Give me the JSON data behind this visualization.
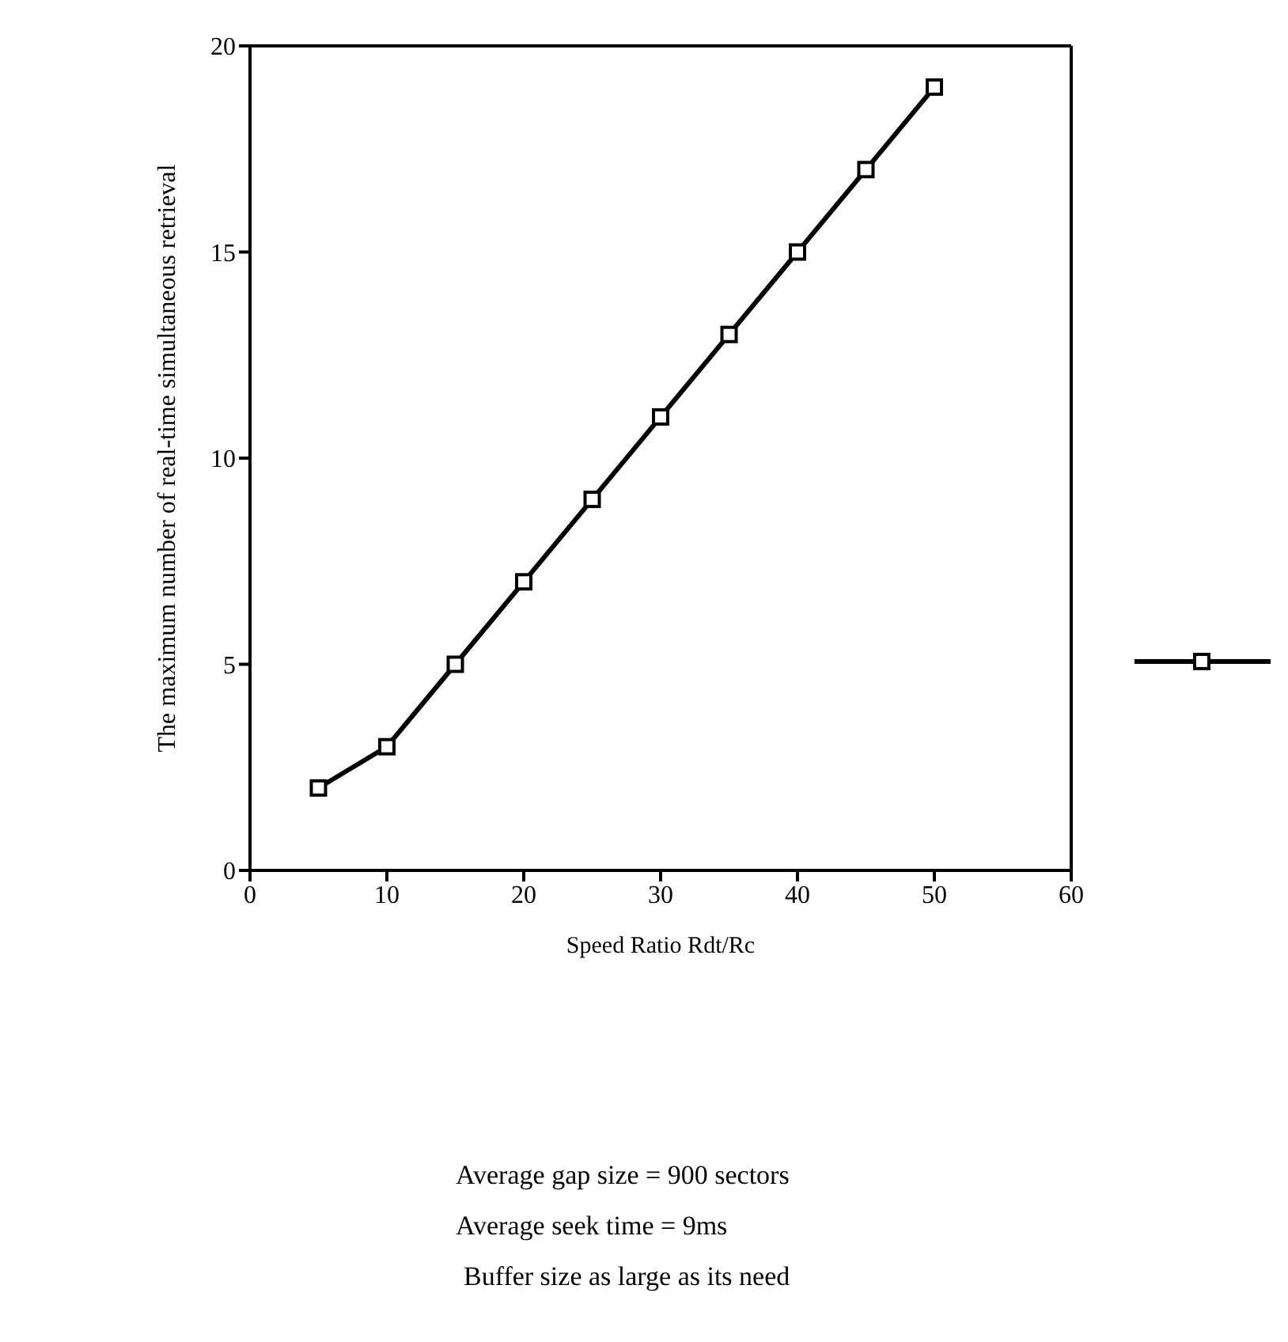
{
  "chart_data": {
    "type": "line",
    "xlabel": "Speed Ratio Rdt/Rc",
    "ylabel": "The maximum number of real-time simultaneous retrieval",
    "x": [
      5,
      10,
      15,
      20,
      25,
      30,
      35,
      40,
      45,
      50
    ],
    "series": [
      {
        "color": "#000000",
        "values": [
          2,
          3,
          5,
          7,
          9,
          11,
          13,
          15,
          17,
          19
        ]
      }
    ],
    "xlim": [
      0,
      60
    ],
    "xticks": [
      0,
      10,
      20,
      30,
      40,
      50,
      60
    ],
    "ylim": [
      0,
      20
    ],
    "yticks": [
      0,
      5,
      10,
      15,
      20
    ],
    "marker": "square",
    "line_style": "solid",
    "grid": false,
    "annotations": [
      "Average gap size = 900 sectors",
      "Average seek time = 9ms",
      "Buffer size as large as its need"
    ]
  }
}
